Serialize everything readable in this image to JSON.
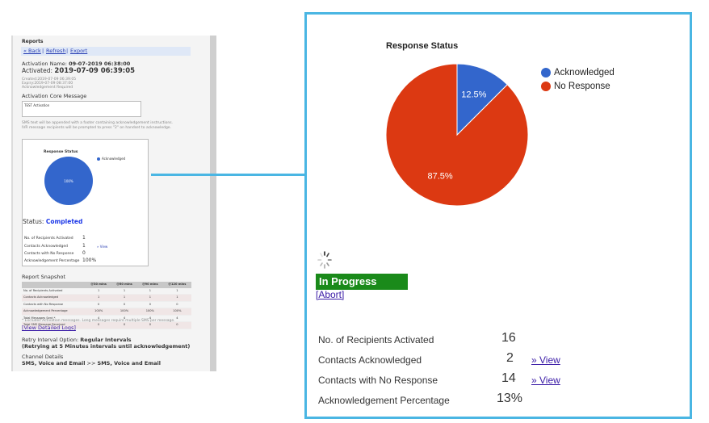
{
  "left": {
    "reports_title": "Reports",
    "nav": {
      "back": "« Back",
      "refresh": "Refresh",
      "export": "Export",
      "sep": "|"
    },
    "activation_name_label": "Activation Name:",
    "activation_name_value": "09-07-2019 06:38:00",
    "activated_label": "Activated:",
    "activated_value": "2019-07-09 06:39:05",
    "created_line": "Created:2019-07-09 06:39:05",
    "expiry_line": "Expiry:2019-07-09 08:37:00",
    "ack_required_line": "Acknowledgement Required",
    "core_message_title": "Activation Core Message",
    "core_message_text": "TEST Activation",
    "note_line1": "SMS text will be appended with a footer containing acknowledgement instructions.",
    "note_line2": "IVR message recipients will be prompted to press \"2\" on handset to acknowledge.",
    "chart_title": "Response Status",
    "legend_label": "Acknowledged",
    "pie_label": "100%",
    "status_label": "Status:",
    "status_value": "Completed",
    "stats": [
      {
        "label": "No. of Recipients Activated",
        "value": "1",
        "link": ""
      },
      {
        "label": "Contacts Acknowledged",
        "value": "1",
        "link": "» View"
      },
      {
        "label": "Contacts with No Response",
        "value": "0",
        "link": ""
      },
      {
        "label": "Acknowledgement Percentage",
        "value": "100%",
        "link": ""
      }
    ],
    "snapshot_title": "Report Snapshot",
    "snapshot_headers": [
      "",
      "@30 mins",
      "@60 mins",
      "@90 mins",
      "@120 mins"
    ],
    "snapshot_rows": [
      [
        "No. of Recipients Activated",
        "1",
        "1",
        "1",
        "1"
      ],
      [
        "Contacts Acknowledged",
        "1",
        "1",
        "1",
        "1"
      ],
      [
        "Contacts with No Response",
        "0",
        "0",
        "0",
        "0"
      ],
      [
        "Acknowledgement Percentage",
        "100%",
        "100%",
        "100%",
        "100%"
      ],
      [
        "Total Messages Sent *",
        "4",
        "4",
        "4",
        "4"
      ],
      [
        "Total SMS Message Received",
        "0",
        "0",
        "0",
        "0"
      ]
    ],
    "footnote": "* Excludes Activation messages. Long messages require multiple SMS per message.",
    "detailed_logs": "[View Detailed Logs]",
    "retry_label": "Retry Interval Option:",
    "retry_value": "Regular Intervals",
    "retry_detail": "(Retrying at 5 Minutes intervals until acknowledgement)",
    "channel_label": "Channel Details",
    "channel_from": "SMS, Voice and Email",
    "channel_arrow": ">>",
    "channel_to": "SMS, Voice and Email"
  },
  "zoom": {
    "chart_title": "Response Status",
    "status_badge": "In Progress",
    "abort_link": "[Abort]",
    "stats": [
      {
        "label": "No. of Recipients Activated",
        "value": "16",
        "link": ""
      },
      {
        "label": "Contacts Acknowledged",
        "value": "2",
        "link": "» View"
      },
      {
        "label": "Contacts with No Response",
        "value": "14",
        "link": "» View"
      },
      {
        "label": "Acknowledgement Percentage",
        "value": "13%",
        "link": ""
      }
    ]
  },
  "colors": {
    "acknowledged": "#3366cc",
    "no_response": "#dc3912",
    "in_progress": "#1a8a1a",
    "highlight_border": "#4ab6e3",
    "completed_text": "#1a36e8"
  },
  "chart_data": [
    {
      "type": "pie",
      "title": "Response Status",
      "categories": [
        "Acknowledged"
      ],
      "values": [
        100
      ],
      "data_labels": [
        "100%"
      ],
      "legend": "right"
    },
    {
      "type": "pie",
      "title": "Response Status",
      "categories": [
        "Acknowledged",
        "No Response"
      ],
      "values": [
        12.5,
        87.5
      ],
      "data_labels": [
        "12.5%",
        "87.5%"
      ],
      "legend": "top-right"
    }
  ]
}
